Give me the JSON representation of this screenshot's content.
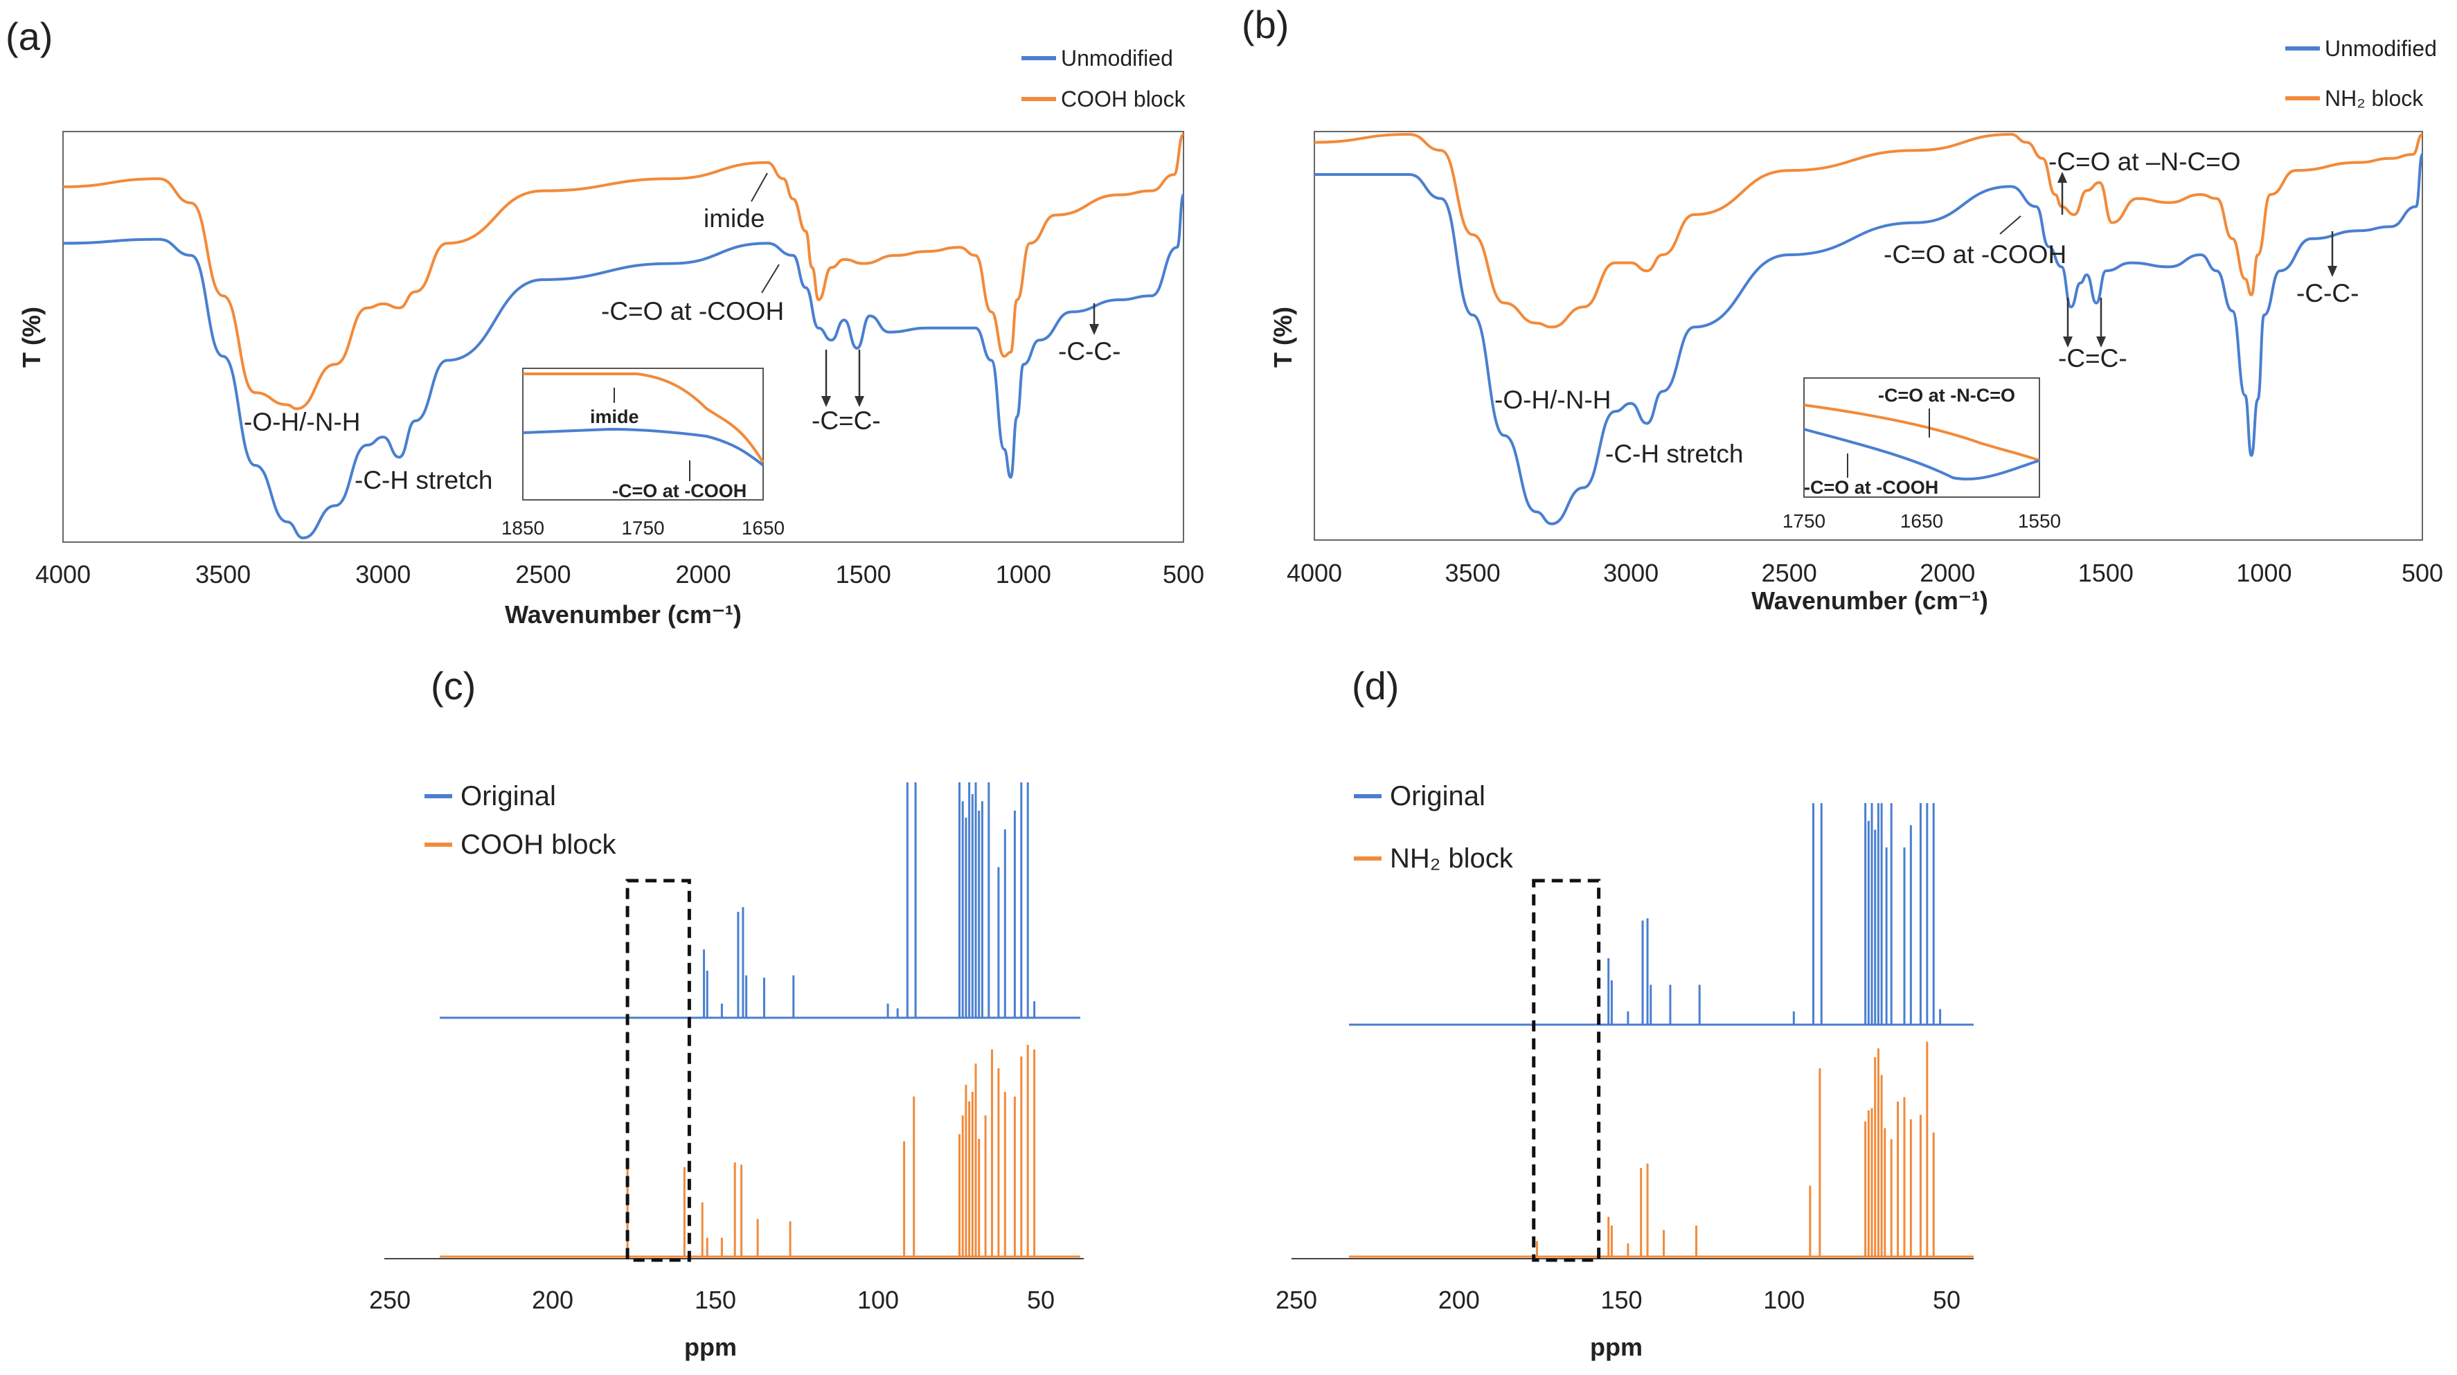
{
  "panels": {
    "a": {
      "label": "(a)",
      "legend": [
        "Unmodified",
        "COOH block"
      ],
      "xlabel": "Wavenumber (cm⁻¹)",
      "ylabel": "T (%)",
      "annotations": [
        "-O-H/-N-H",
        "-C-H stretch",
        "imide",
        "-C=O at -COOH",
        "-C=C-",
        "-C-C-"
      ],
      "inset": {
        "annotations": [
          "imide",
          "-C=O at -COOH"
        ]
      }
    },
    "b": {
      "label": "(b)",
      "legend": [
        "Unmodified",
        "NH₂ block"
      ],
      "xlabel": "Wavenumber (cm⁻¹)",
      "ylabel": "T (%)",
      "annotations": [
        "-O-H/-N-H",
        "-C-H stretch",
        "-C=O at –N-C=O",
        "-C=O at -COOH",
        "-C=C-",
        "-C-C-"
      ],
      "inset": {
        "annotations": [
          "-C=O at -N-C=O",
          "-C=O at -COOH"
        ]
      }
    },
    "c": {
      "label": "(c)",
      "legend": [
        "Original",
        "COOH block"
      ],
      "xlabel": "ppm"
    },
    "d": {
      "label": "(d)",
      "legend": [
        "Original",
        "NH₂ block"
      ],
      "xlabel": "ppm"
    }
  },
  "chart_data": [
    {
      "id": "a",
      "type": "line",
      "xlim": [
        4000,
        500
      ],
      "x_reversed": true,
      "xticks": [
        4000,
        3500,
        3000,
        2500,
        2000,
        1500,
        1000,
        500
      ],
      "colors": [
        "#4a7fd0",
        "#f28a3a"
      ],
      "series": [
        {
          "name": "Unmodified",
          "x": [
            4000,
            3700,
            3600,
            3500,
            3400,
            3300,
            3250,
            3150,
            3050,
            3000,
            2950,
            2900,
            2800,
            2500,
            2100,
            1800,
            1720,
            1680,
            1640,
            1600,
            1560,
            1520,
            1480,
            1420,
            1300,
            1200,
            1150,
            1100,
            1060,
            1040,
            1020,
            1000,
            950,
            850,
            700,
            600,
            520,
            500
          ],
          "y": [
            73,
            74,
            70,
            45,
            18,
            4,
            0,
            8,
            23,
            25,
            20,
            29,
            44,
            64,
            68,
            73,
            70,
            62,
            52,
            49,
            54,
            47,
            55,
            51,
            52,
            52,
            52,
            44,
            22,
            15,
            30,
            43,
            49,
            56,
            59,
            60,
            72,
            85
          ]
        },
        {
          "name": "COOH block",
          "x": [
            4000,
            3700,
            3600,
            3500,
            3400,
            3300,
            3270,
            3150,
            3050,
            3000,
            2950,
            2900,
            2800,
            2500,
            2100,
            1800,
            1750,
            1720,
            1680,
            1660,
            1640,
            1600,
            1560,
            1500,
            1400,
            1300,
            1200,
            1150,
            1100,
            1060,
            1040,
            1020,
            980,
            900,
            700,
            600,
            530,
            500
          ],
          "y": [
            87,
            89,
            83,
            60,
            36,
            33,
            32,
            43,
            57,
            58,
            57,
            61,
            73,
            86,
            89,
            93,
            89,
            84,
            76,
            67,
            59,
            67,
            69,
            68,
            70,
            71,
            72,
            70,
            56,
            45,
            46,
            59,
            73,
            80,
            85,
            86,
            90,
            100
          ]
        }
      ],
      "inset": {
        "xlim": [
          1850,
          1650
        ],
        "xticks": [
          1850,
          1750,
          1650
        ]
      }
    },
    {
      "id": "b",
      "type": "line",
      "xlim": [
        4000,
        500
      ],
      "x_reversed": true,
      "xticks": [
        4000,
        3500,
        3000,
        2500,
        2000,
        1500,
        1000,
        500
      ],
      "colors": [
        "#4a7fd0",
        "#f28a3a"
      ],
      "series": [
        {
          "name": "Unmodified",
          "x": [
            4000,
            3700,
            3600,
            3500,
            3400,
            3300,
            3250,
            3150,
            3050,
            3000,
            2950,
            2900,
            2800,
            2500,
            2100,
            1800,
            1720,
            1680,
            1640,
            1610,
            1580,
            1560,
            1530,
            1500,
            1420,
            1300,
            1200,
            1150,
            1100,
            1060,
            1040,
            1020,
            1000,
            950,
            850,
            700,
            600,
            520,
            500
          ],
          "y": [
            90,
            90,
            84,
            55,
            25,
            6,
            3,
            12,
            31,
            33,
            28,
            36,
            52,
            70,
            78,
            87,
            82,
            72,
            67,
            57,
            63,
            65,
            58,
            66,
            68,
            67,
            70,
            66,
            56,
            35,
            20,
            34,
            55,
            66,
            74,
            76,
            77,
            82,
            95
          ]
        },
        {
          "name": "NH₂ block",
          "x": [
            4000,
            3700,
            3600,
            3500,
            3400,
            3300,
            3250,
            3150,
            3050,
            3000,
            2950,
            2900,
            2800,
            2500,
            2100,
            1800,
            1750,
            1700,
            1660,
            1640,
            1600,
            1560,
            1520,
            1480,
            1400,
            1300,
            1200,
            1150,
            1100,
            1060,
            1040,
            1020,
            980,
            900,
            700,
            600,
            530,
            500
          ],
          "y": [
            98,
            100,
            96,
            75,
            58,
            53,
            52,
            57,
            68,
            68,
            66,
            70,
            80,
            91,
            96,
            100,
            98,
            94,
            85,
            82,
            80,
            86,
            88,
            78,
            84,
            83,
            85,
            84,
            74,
            64,
            60,
            70,
            85,
            91,
            93,
            94,
            95,
            100
          ]
        }
      ],
      "inset": {
        "xlim": [
          1750,
          1550
        ],
        "xticks": [
          1750,
          1650,
          1550
        ]
      }
    },
    {
      "id": "c",
      "type": "bar",
      "xlim": [
        250,
        45
      ],
      "x_reversed": true,
      "xlabel": "ppm",
      "xticks": [
        250,
        200,
        150,
        100,
        50
      ],
      "colors": [
        "#4a7fd0",
        "#f28a3a"
      ],
      "highlight_region": [
        177,
        158
      ],
      "series": [
        {
          "name": "Original",
          "peaks": [
            [
              153.5,
              29
            ],
            [
              152.5,
              20
            ],
            [
              148,
              6
            ],
            [
              143,
              45
            ],
            [
              141.5,
              47
            ],
            [
              140.5,
              18
            ],
            [
              135,
              17
            ],
            [
              126,
              18
            ],
            [
              97,
              6
            ],
            [
              94,
              4
            ],
            [
              91,
              100
            ],
            [
              88.5,
              100
            ],
            [
              75,
              100
            ],
            [
              74,
              92
            ],
            [
              73,
              85
            ],
            [
              72,
              100
            ],
            [
              71,
              95
            ],
            [
              70,
              100
            ],
            [
              69,
              88
            ],
            [
              68,
              92
            ],
            [
              66,
              100
            ],
            [
              63,
              64
            ],
            [
              61,
              80
            ],
            [
              58,
              88
            ],
            [
              56,
              100
            ],
            [
              54,
              100
            ],
            [
              52,
              7
            ]
          ]
        },
        {
          "name": "COOH block",
          "peaks": [
            [
              177,
              42
            ],
            [
              159.5,
              38
            ],
            [
              154,
              23
            ],
            [
              152.5,
              8
            ],
            [
              148,
              8
            ],
            [
              144,
              40
            ],
            [
              142,
              39
            ],
            [
              137,
              16
            ],
            [
              127,
              15
            ],
            [
              92,
              49
            ],
            [
              89,
              68
            ],
            [
              75,
              52
            ],
            [
              74,
              60
            ],
            [
              73,
              73
            ],
            [
              72,
              66
            ],
            [
              71,
              70
            ],
            [
              70,
              82
            ],
            [
              69,
              50
            ],
            [
              67,
              60
            ],
            [
              65,
              88
            ],
            [
              63,
              80
            ],
            [
              61,
              70
            ],
            [
              58,
              68
            ],
            [
              56,
              85
            ],
            [
              54,
              90
            ],
            [
              52,
              88
            ]
          ]
        }
      ]
    },
    {
      "id": "d",
      "type": "bar",
      "xlim": [
        250,
        45
      ],
      "x_reversed": true,
      "xlabel": "ppm",
      "xticks": [
        250,
        200,
        150,
        100,
        50
      ],
      "colors": [
        "#4a7fd0",
        "#f28a3a"
      ],
      "highlight_region": [
        177,
        157
      ],
      "series": [
        {
          "name": "Original",
          "peaks": [
            [
              154,
              30
            ],
            [
              153,
              20
            ],
            [
              148,
              6
            ],
            [
              143.5,
              47
            ],
            [
              142,
              48
            ],
            [
              141,
              18
            ],
            [
              135,
              18
            ],
            [
              126,
              18
            ],
            [
              97,
              6
            ],
            [
              91,
              100
            ],
            [
              88.5,
              100
            ],
            [
              75,
              100
            ],
            [
              74,
              92
            ],
            [
              73,
              100
            ],
            [
              72,
              88
            ],
            [
              71,
              100
            ],
            [
              70,
              100
            ],
            [
              68.5,
              80
            ],
            [
              67,
              100
            ],
            [
              63,
              80
            ],
            [
              61,
              90
            ],
            [
              58,
              100
            ],
            [
              56,
              100
            ],
            [
              54,
              100
            ],
            [
              52,
              7
            ]
          ]
        },
        {
          "name": "NH₂ block",
          "peaks": [
            [
              176,
              7
            ],
            [
              154,
              18
            ],
            [
              153,
              14
            ],
            [
              148,
              6
            ],
            [
              144,
              40
            ],
            [
              142,
              42
            ],
            [
              137,
              12
            ],
            [
              127,
              14
            ],
            [
              92,
              32
            ],
            [
              89,
              85
            ],
            [
              75,
              61
            ],
            [
              74,
              66
            ],
            [
              73,
              67
            ],
            [
              72,
              90
            ],
            [
              71,
              94
            ],
            [
              70,
              82
            ],
            [
              69,
              58
            ],
            [
              67,
              53
            ],
            [
              65,
              70
            ],
            [
              63,
              72
            ],
            [
              61,
              62
            ],
            [
              58,
              64
            ],
            [
              56,
              97
            ],
            [
              54,
              56
            ]
          ]
        }
      ]
    }
  ]
}
